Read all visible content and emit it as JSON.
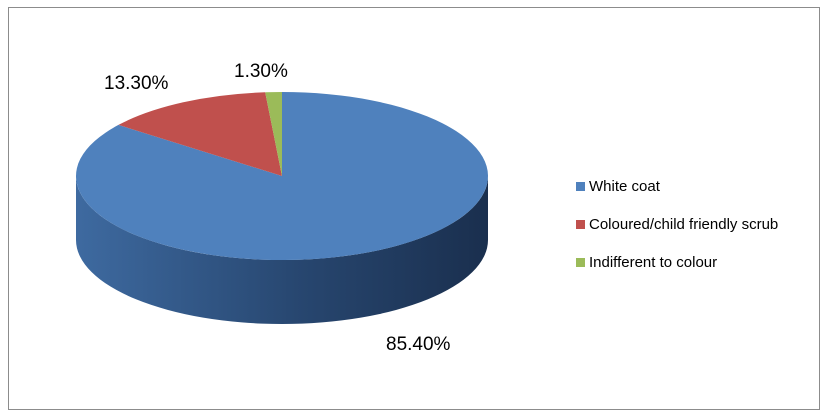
{
  "chart_data": {
    "type": "pie",
    "title": "",
    "categories": [
      "White coat",
      "Coloured/child friendly scrub",
      "Indifferent to colour"
    ],
    "values": [
      85.4,
      13.3,
      1.3
    ],
    "data_labels": [
      "85.40%",
      "13.30%",
      "1.30%"
    ],
    "colors": [
      "#4F81BD",
      "#C0504D",
      "#9BBB59"
    ],
    "legend_position": "right",
    "three_d": true
  }
}
